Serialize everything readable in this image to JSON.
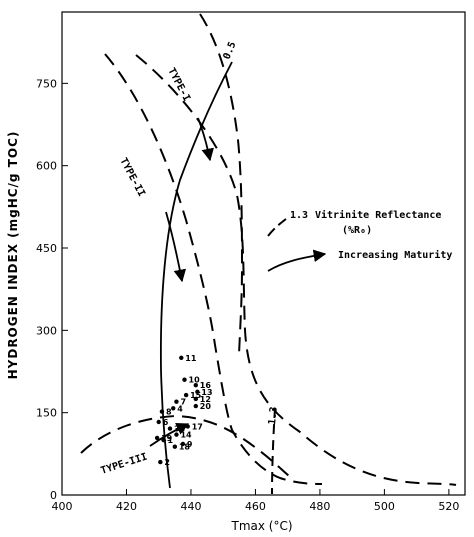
{
  "chart_data": {
    "type": "scatter",
    "title": "",
    "xlabel": "Tmax (°C)",
    "ylabel": "HYDROGEN INDEX (mgHC/g TOC)",
    "xlim": [
      400,
      525
    ],
    "ylim": [
      0,
      880
    ],
    "x_ticks": [
      "400",
      "420",
      "440",
      "460",
      "480",
      "500",
      "520"
    ],
    "y_ticks": [
      "0",
      "150",
      "300",
      "450",
      "600",
      "750"
    ],
    "grid": false,
    "series": [
      {
        "name": "",
        "points": [
          {
            "label": "11",
            "x": 437.0,
            "y": 250
          },
          {
            "label": "10",
            "x": 438.0,
            "y": 210
          },
          {
            "label": "16",
            "x": 441.5,
            "y": 200
          },
          {
            "label": "13",
            "x": 442.0,
            "y": 188
          },
          {
            "label": "15",
            "x": 438.5,
            "y": 182
          },
          {
            "label": "7",
            "x": 435.5,
            "y": 170
          },
          {
            "label": "12",
            "x": 441.5,
            "y": 175
          },
          {
            "label": "20",
            "x": 441.5,
            "y": 162
          },
          {
            "label": "8",
            "x": 431.0,
            "y": 152
          },
          {
            "label": "4",
            "x": 434.5,
            "y": 158
          },
          {
            "label": "6",
            "x": 430.0,
            "y": 133
          },
          {
            "label": "35",
            "x": 433.5,
            "y": 121
          },
          {
            "label": "17",
            "x": 439.0,
            "y": 125
          },
          {
            "label": "14",
            "x": 435.5,
            "y": 110
          },
          {
            "label": "19",
            "x": 429.5,
            "y": 104
          },
          {
            "label": "1",
            "x": 431.5,
            "y": 100
          },
          {
            "label": "18",
            "x": 435.0,
            "y": 88
          },
          {
            "label": "9",
            "x": 437.5,
            "y": 93
          },
          {
            "label": "2",
            "x": 430.5,
            "y": 60
          }
        ]
      }
    ],
    "curves": {
      "type_1": {
        "label": "TYPE-I"
      },
      "type_2": {
        "label": "TYPE-II"
      },
      "type_3": {
        "label": "TYPE-III"
      },
      "iso_05": {
        "label": "0.5"
      },
      "iso_13": {
        "label": "1.3"
      }
    },
    "legend": {
      "placement": "right",
      "vitrinite_value": "1.3",
      "vitrinite_label": "Vitrinite Reflectance",
      "vitrinite_unit": "(%R₀)",
      "maturity_label": "Increasing Maturity"
    }
  }
}
